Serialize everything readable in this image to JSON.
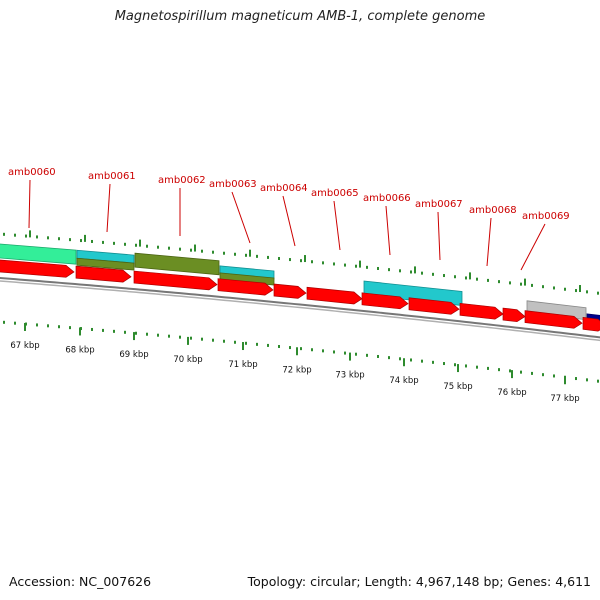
{
  "title": "Magnetospirillum magneticum AMB-1, complete genome",
  "footer": {
    "accession": "Accession: NC_007626",
    "topology": "Topology: circular; Length: 4,967,148 bp; Genes: 4,611"
  },
  "genes": [
    {
      "label": "amb0060"
    },
    {
      "label": "amb0061"
    },
    {
      "label": "amb0062"
    },
    {
      "label": "amb0063"
    },
    {
      "label": "amb0064"
    },
    {
      "label": "amb0065"
    },
    {
      "label": "amb0066"
    },
    {
      "label": "amb0067"
    },
    {
      "label": "amb0068"
    },
    {
      "label": "amb0069"
    }
  ],
  "kbp_labels": [
    "67 kbp",
    "68 kbp",
    "69 kbp",
    "70 kbp",
    "71 kbp",
    "72 kbp",
    "73 kbp",
    "74 kbp",
    "75 kbp",
    "76 kbp",
    "77 kbp"
  ],
  "colors": {
    "gene_label": "#cc0000",
    "cds_arrow": "#ff0000",
    "tick": "#2e8b2e",
    "backbone": "#808080"
  }
}
